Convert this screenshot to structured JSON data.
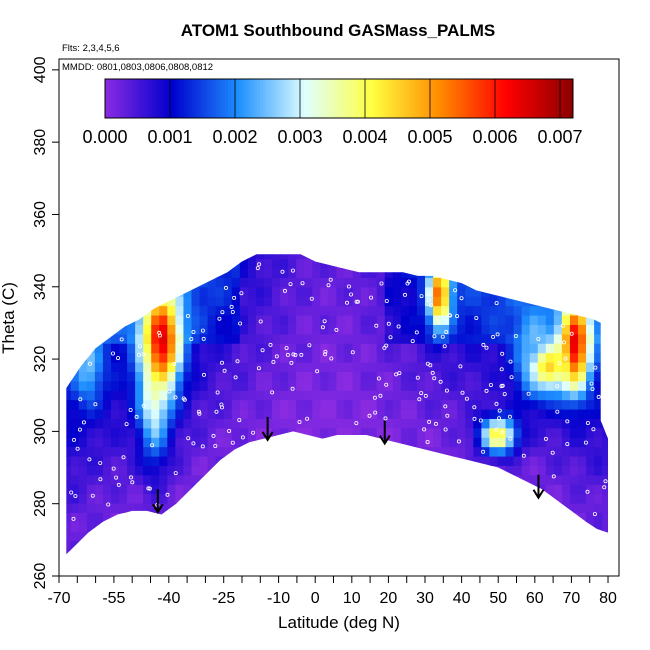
{
  "chart_data": {
    "type": "heatmap",
    "title": "ATOM1 Southbound GASMass_PALMS",
    "notes": {
      "flights": "Flts: 2,3,4,5,6",
      "dates": "MMDD: 0801,0803,0806,0808,0812"
    },
    "xlabel": "Latitude (deg N)",
    "ylabel": "Theta (C)",
    "xlim": [
      -70,
      83
    ],
    "ylim": [
      260,
      403
    ],
    "x_ticks": [
      -70,
      -55,
      -40,
      -25,
      -10,
      0,
      10,
      20,
      30,
      40,
      50,
      60,
      70,
      80
    ],
    "y_ticks": [
      260,
      280,
      300,
      320,
      340,
      360,
      380,
      400
    ],
    "colorbar": {
      "ticks": [
        "0.000",
        "0.001",
        "0.002",
        "0.003",
        "0.004",
        "0.005",
        "0.006",
        "0.007"
      ],
      "range": [
        0,
        0.0072
      ],
      "colors": [
        "#8a2be2",
        "#0000cd",
        "#1e90ff",
        "#e0ffff",
        "#ffff40",
        "#ff8c00",
        "#ff0000",
        "#8b0000"
      ]
    },
    "surface_outline": [
      [
        -68,
        266
      ],
      [
        -66,
        268
      ],
      [
        -62,
        272
      ],
      [
        -58,
        275
      ],
      [
        -54,
        277
      ],
      [
        -50,
        278
      ],
      [
        -46,
        278
      ],
      [
        -42,
        277
      ],
      [
        -38,
        280
      ],
      [
        -34,
        284
      ],
      [
        -30,
        288
      ],
      [
        -26,
        292
      ],
      [
        -22,
        295
      ],
      [
        -18,
        297
      ],
      [
        -14,
        298
      ],
      [
        -10,
        299
      ],
      [
        -6,
        300
      ],
      [
        -2,
        299
      ],
      [
        2,
        298
      ],
      [
        6,
        299
      ],
      [
        10,
        299
      ],
      [
        14,
        299
      ],
      [
        18,
        298
      ],
      [
        22,
        297
      ],
      [
        26,
        296
      ],
      [
        30,
        295
      ],
      [
        34,
        294
      ],
      [
        38,
        293
      ],
      [
        42,
        292
      ],
      [
        46,
        291
      ],
      [
        50,
        290
      ],
      [
        54,
        288
      ],
      [
        58,
        286
      ],
      [
        62,
        284
      ],
      [
        66,
        281
      ],
      [
        70,
        278
      ],
      [
        74,
        275
      ],
      [
        77,
        273
      ]
    ],
    "top_outline": [
      [
        -68,
        312
      ],
      [
        -64,
        318
      ],
      [
        -60,
        323
      ],
      [
        -56,
        326
      ],
      [
        -52,
        329
      ],
      [
        -48,
        331
      ],
      [
        -44,
        334
      ],
      [
        -40,
        336
      ],
      [
        -36,
        338
      ],
      [
        -32,
        340
      ],
      [
        -28,
        342
      ],
      [
        -24,
        344
      ],
      [
        -20,
        347
      ],
      [
        -16,
        349
      ],
      [
        -12,
        349
      ],
      [
        -8,
        349
      ],
      [
        -4,
        349
      ],
      [
        0,
        347
      ],
      [
        4,
        346
      ],
      [
        8,
        345
      ],
      [
        12,
        344
      ],
      [
        16,
        344
      ],
      [
        20,
        344
      ],
      [
        24,
        344
      ],
      [
        28,
        343
      ],
      [
        32,
        343
      ],
      [
        36,
        342
      ],
      [
        40,
        341
      ],
      [
        44,
        339
      ],
      [
        48,
        338
      ],
      [
        52,
        337
      ],
      [
        56,
        336
      ],
      [
        60,
        335
      ],
      [
        64,
        334
      ],
      [
        68,
        333
      ],
      [
        72,
        332
      ],
      [
        76,
        331
      ],
      [
        78,
        330
      ],
      [
        78,
        303
      ],
      [
        80,
        298
      ],
      [
        80,
        272
      ]
    ],
    "hotspots": [
      {
        "lat": -42,
        "theta": 325,
        "value": 0.0065,
        "wlat": 5,
        "wtheta": 14
      },
      {
        "lat": -44,
        "theta": 312,
        "value": 0.0035,
        "wlat": 4,
        "wtheta": 18
      },
      {
        "lat": 34,
        "theta": 338,
        "value": 0.0055,
        "wlat": 3,
        "wtheta": 9
      },
      {
        "lat": 50,
        "theta": 299,
        "value": 0.0042,
        "wlat": 5,
        "wtheta": 5
      },
      {
        "lat": 71,
        "theta": 324,
        "value": 0.0065,
        "wlat": 4,
        "wtheta": 12
      },
      {
        "lat": 64,
        "theta": 318,
        "value": 0.0045,
        "wlat": 6,
        "wtheta": 7
      },
      {
        "lat": 60,
        "theta": 322,
        "value": 0.0025,
        "wlat": 5,
        "wtheta": 12
      },
      {
        "lat": -62,
        "theta": 318,
        "value": 0.0025,
        "wlat": 4,
        "wtheta": 10
      }
    ],
    "arrows": [
      {
        "lat": -43,
        "theta": 284
      },
      {
        "lat": -13,
        "theta": 304
      },
      {
        "lat": 19,
        "theta": 303
      },
      {
        "lat": 61,
        "theta": 288
      }
    ],
    "grid": false,
    "legend_position": "top"
  }
}
